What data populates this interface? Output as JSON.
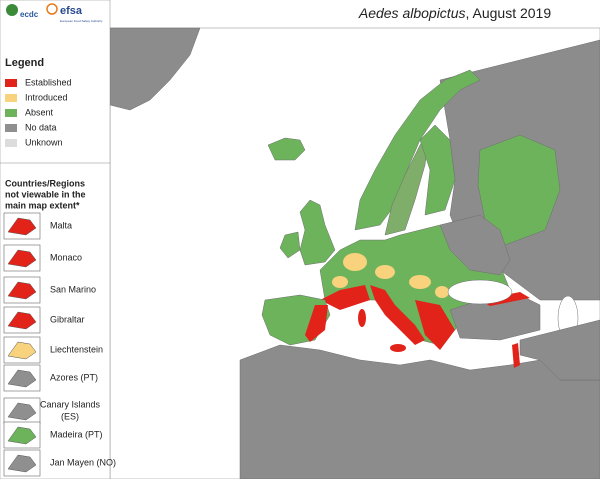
{
  "header": {
    "logos": [
      "ecdc",
      "efsa"
    ],
    "logo_subtitle": "European Food Safety Authority",
    "title_italic": "Aedes albopictus",
    "title_rest": ", August 2019"
  },
  "legend": {
    "title": "Legend",
    "items": [
      {
        "label": "Established",
        "color": "#e2231a"
      },
      {
        "label": "Introduced",
        "color": "#f9d27d"
      },
      {
        "label": "Absent",
        "color": "#6db35c"
      },
      {
        "label": "No data",
        "color": "#8f8f8f"
      },
      {
        "label": "Unknown",
        "color": "#dcdcdc"
      }
    ]
  },
  "insets": {
    "title_lines": [
      "Countries/Regions",
      "not viewable in the",
      "main map extent*"
    ],
    "items": [
      {
        "lines": [
          "Malta"
        ],
        "color": "#e2231a"
      },
      {
        "lines": [
          "Monaco"
        ],
        "color": "#e2231a"
      },
      {
        "lines": [
          "San Marino"
        ],
        "color": "#e2231a"
      },
      {
        "lines": [
          "Gibraltar"
        ],
        "color": "#e2231a"
      },
      {
        "lines": [
          "Liechtenstein"
        ],
        "color": "#f9d27d"
      },
      {
        "lines": [
          "Azores (PT)"
        ],
        "color": "#8f8f8f"
      },
      {
        "lines": [
          "Canary Islands",
          "(ES)"
        ],
        "color": "#8f8f8f"
      },
      {
        "lines": [
          "Madeira (PT)"
        ],
        "color": "#6db35c"
      },
      {
        "lines": [
          "Jan Mayen (NO)"
        ],
        "color": "#8f8f8f"
      }
    ]
  }
}
